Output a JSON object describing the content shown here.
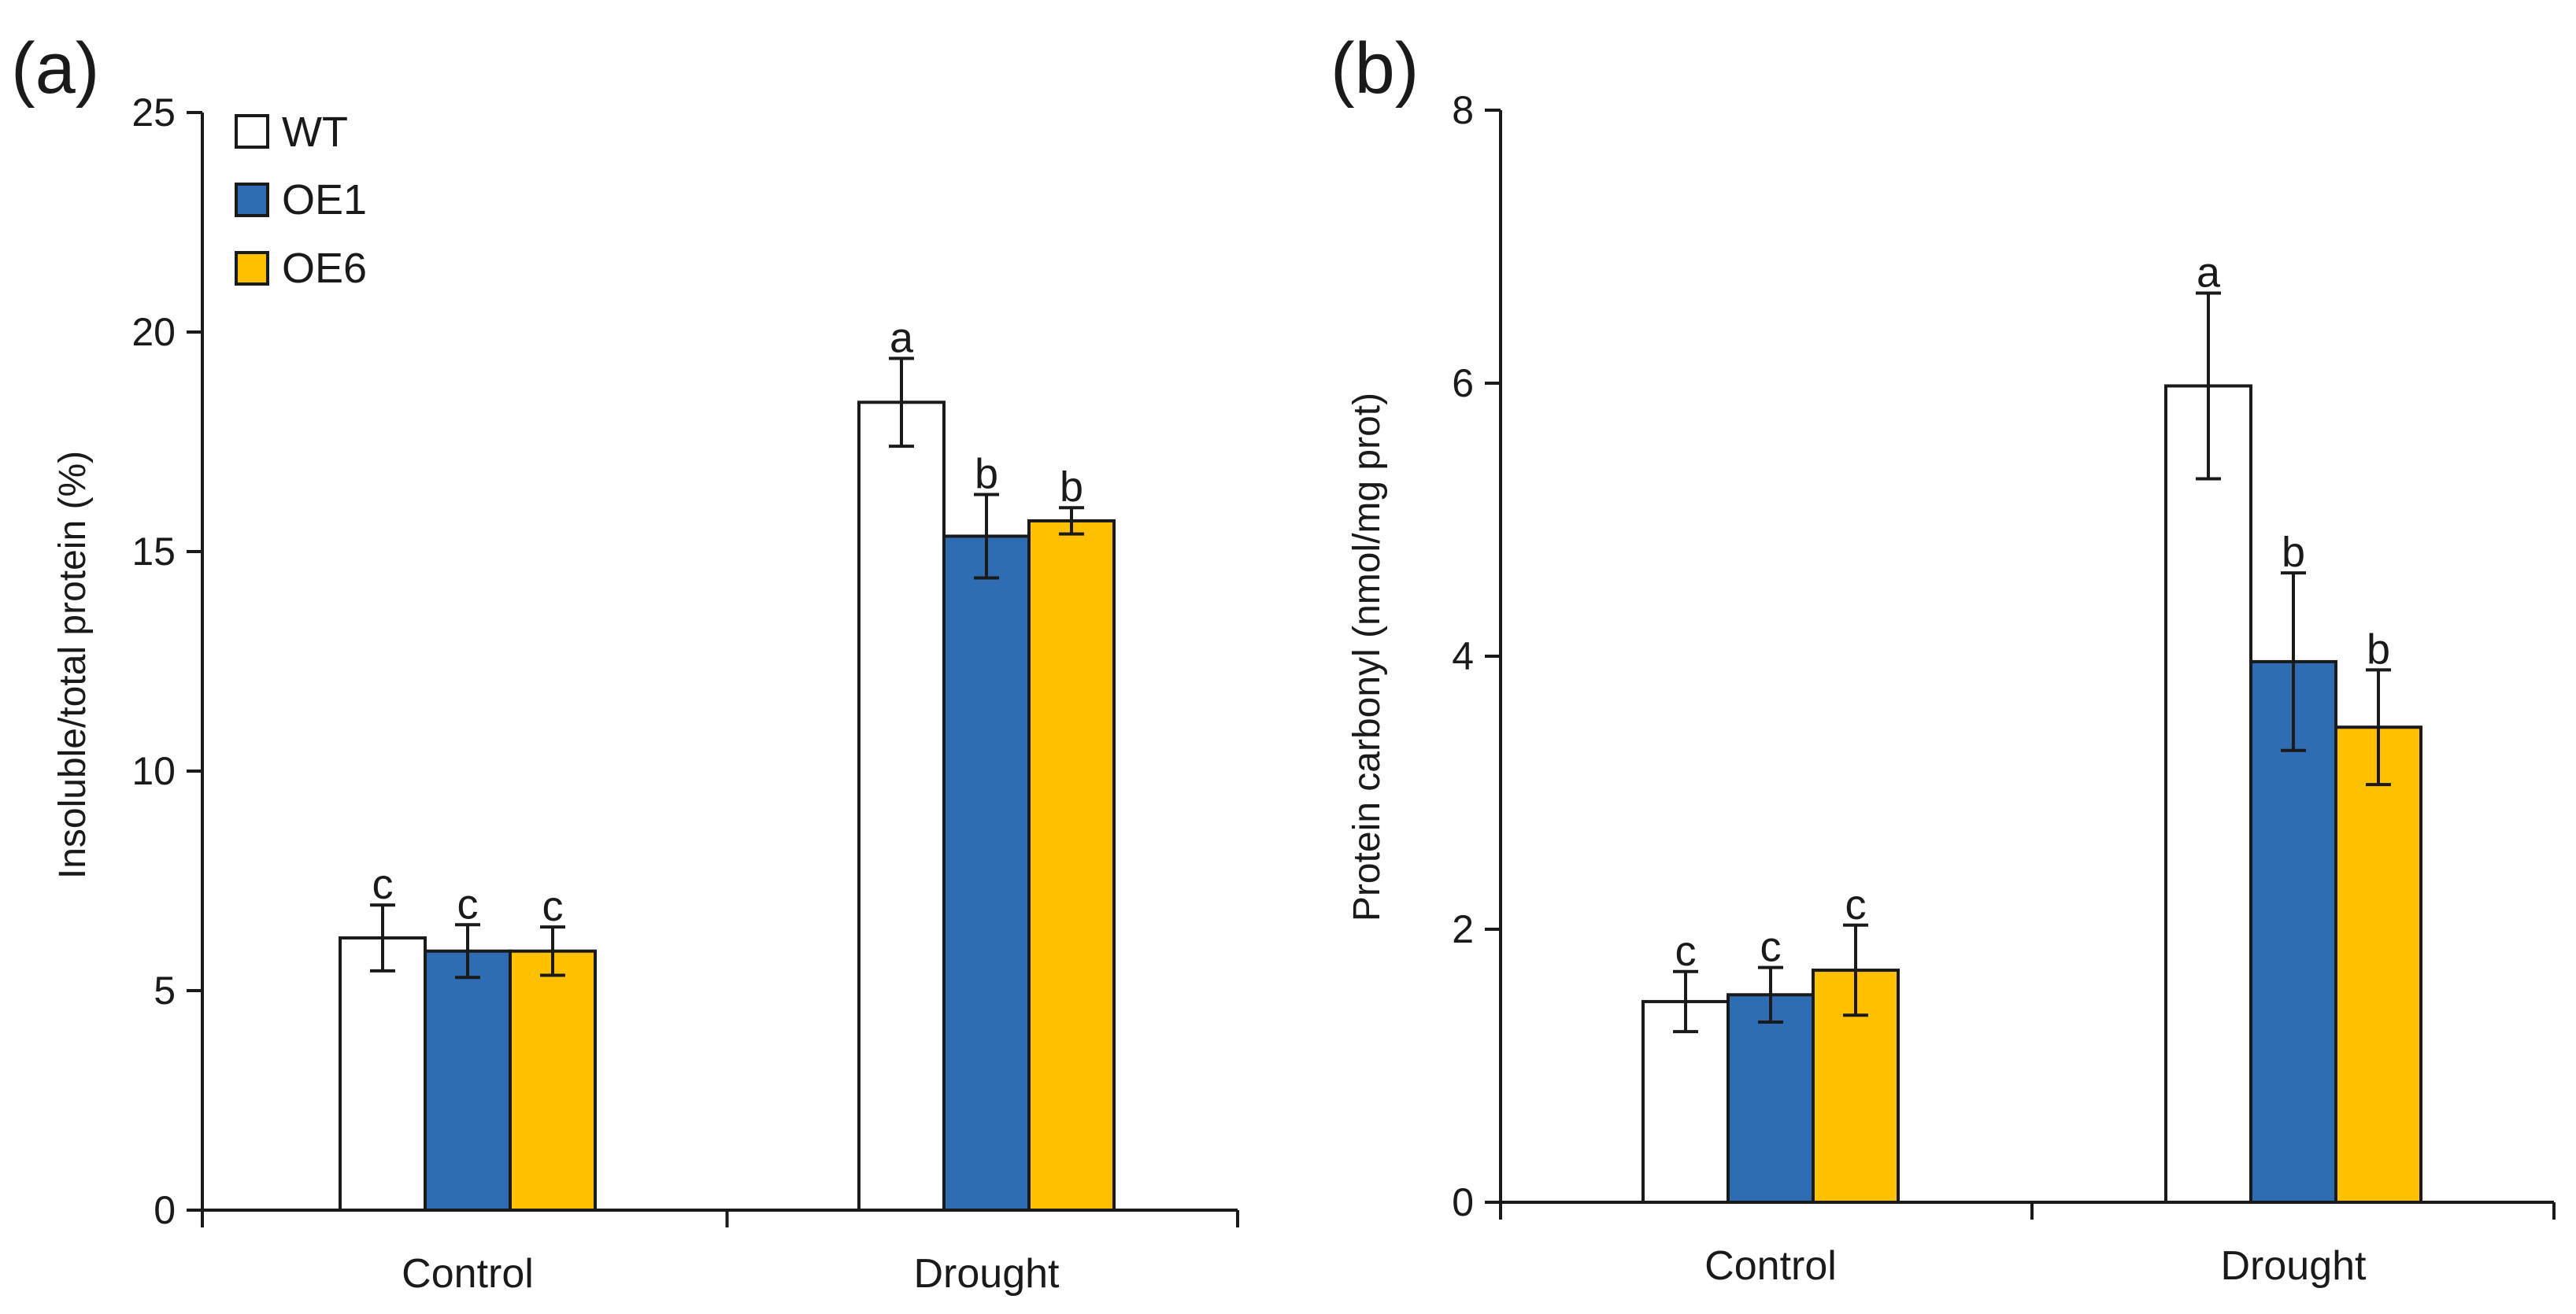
{
  "colors": {
    "WT": "#ffffff",
    "OE1": "#2e6db4",
    "OE6": "#ffc000",
    "stroke": "#1a1a1a"
  },
  "legend": {
    "items": [
      {
        "name": "WT",
        "color": "#ffffff"
      },
      {
        "name": "OE1",
        "color": "#2e6db4"
      },
      {
        "name": "OE6",
        "color": "#ffc000"
      }
    ]
  },
  "chart_data": [
    {
      "type": "bar",
      "panel_label": "(a)",
      "title": "",
      "xlabel": "",
      "ylabel": "Insoluble/total protein (%)",
      "ylim": [
        0,
        25
      ],
      "yticks": [
        0,
        5,
        10,
        15,
        20,
        25
      ],
      "categories": [
        "Control",
        "Drought"
      ],
      "series": [
        {
          "name": "WT",
          "values": [
            6.2,
            18.4
          ],
          "errors": [
            0.75,
            1.0
          ],
          "letters": [
            "c",
            "a"
          ]
        },
        {
          "name": "OE1",
          "values": [
            5.9,
            15.35
          ],
          "errors": [
            0.6,
            0.95
          ],
          "letters": [
            "c",
            "b"
          ]
        },
        {
          "name": "OE6",
          "values": [
            5.9,
            15.7
          ],
          "errors": [
            0.55,
            0.3
          ],
          "letters": [
            "c",
            "b"
          ]
        }
      ]
    },
    {
      "type": "bar",
      "panel_label": "(b)",
      "title": "",
      "xlabel": "",
      "ylabel": "Protein carbonyl (nmol/mg prot)",
      "ylim": [
        0,
        8
      ],
      "yticks": [
        0,
        2,
        4,
        6,
        8
      ],
      "categories": [
        "Control",
        "Drought"
      ],
      "series": [
        {
          "name": "WT",
          "values": [
            1.47,
            5.98
          ],
          "errors": [
            0.22,
            0.68
          ],
          "letters": [
            "c",
            "a"
          ]
        },
        {
          "name": "OE1",
          "values": [
            1.52,
            3.96
          ],
          "errors": [
            0.2,
            0.65
          ],
          "letters": [
            "c",
            "b"
          ]
        },
        {
          "name": "OE6",
          "values": [
            1.7,
            3.48
          ],
          "errors": [
            0.33,
            0.42
          ],
          "letters": [
            "c",
            "b"
          ]
        }
      ]
    }
  ]
}
